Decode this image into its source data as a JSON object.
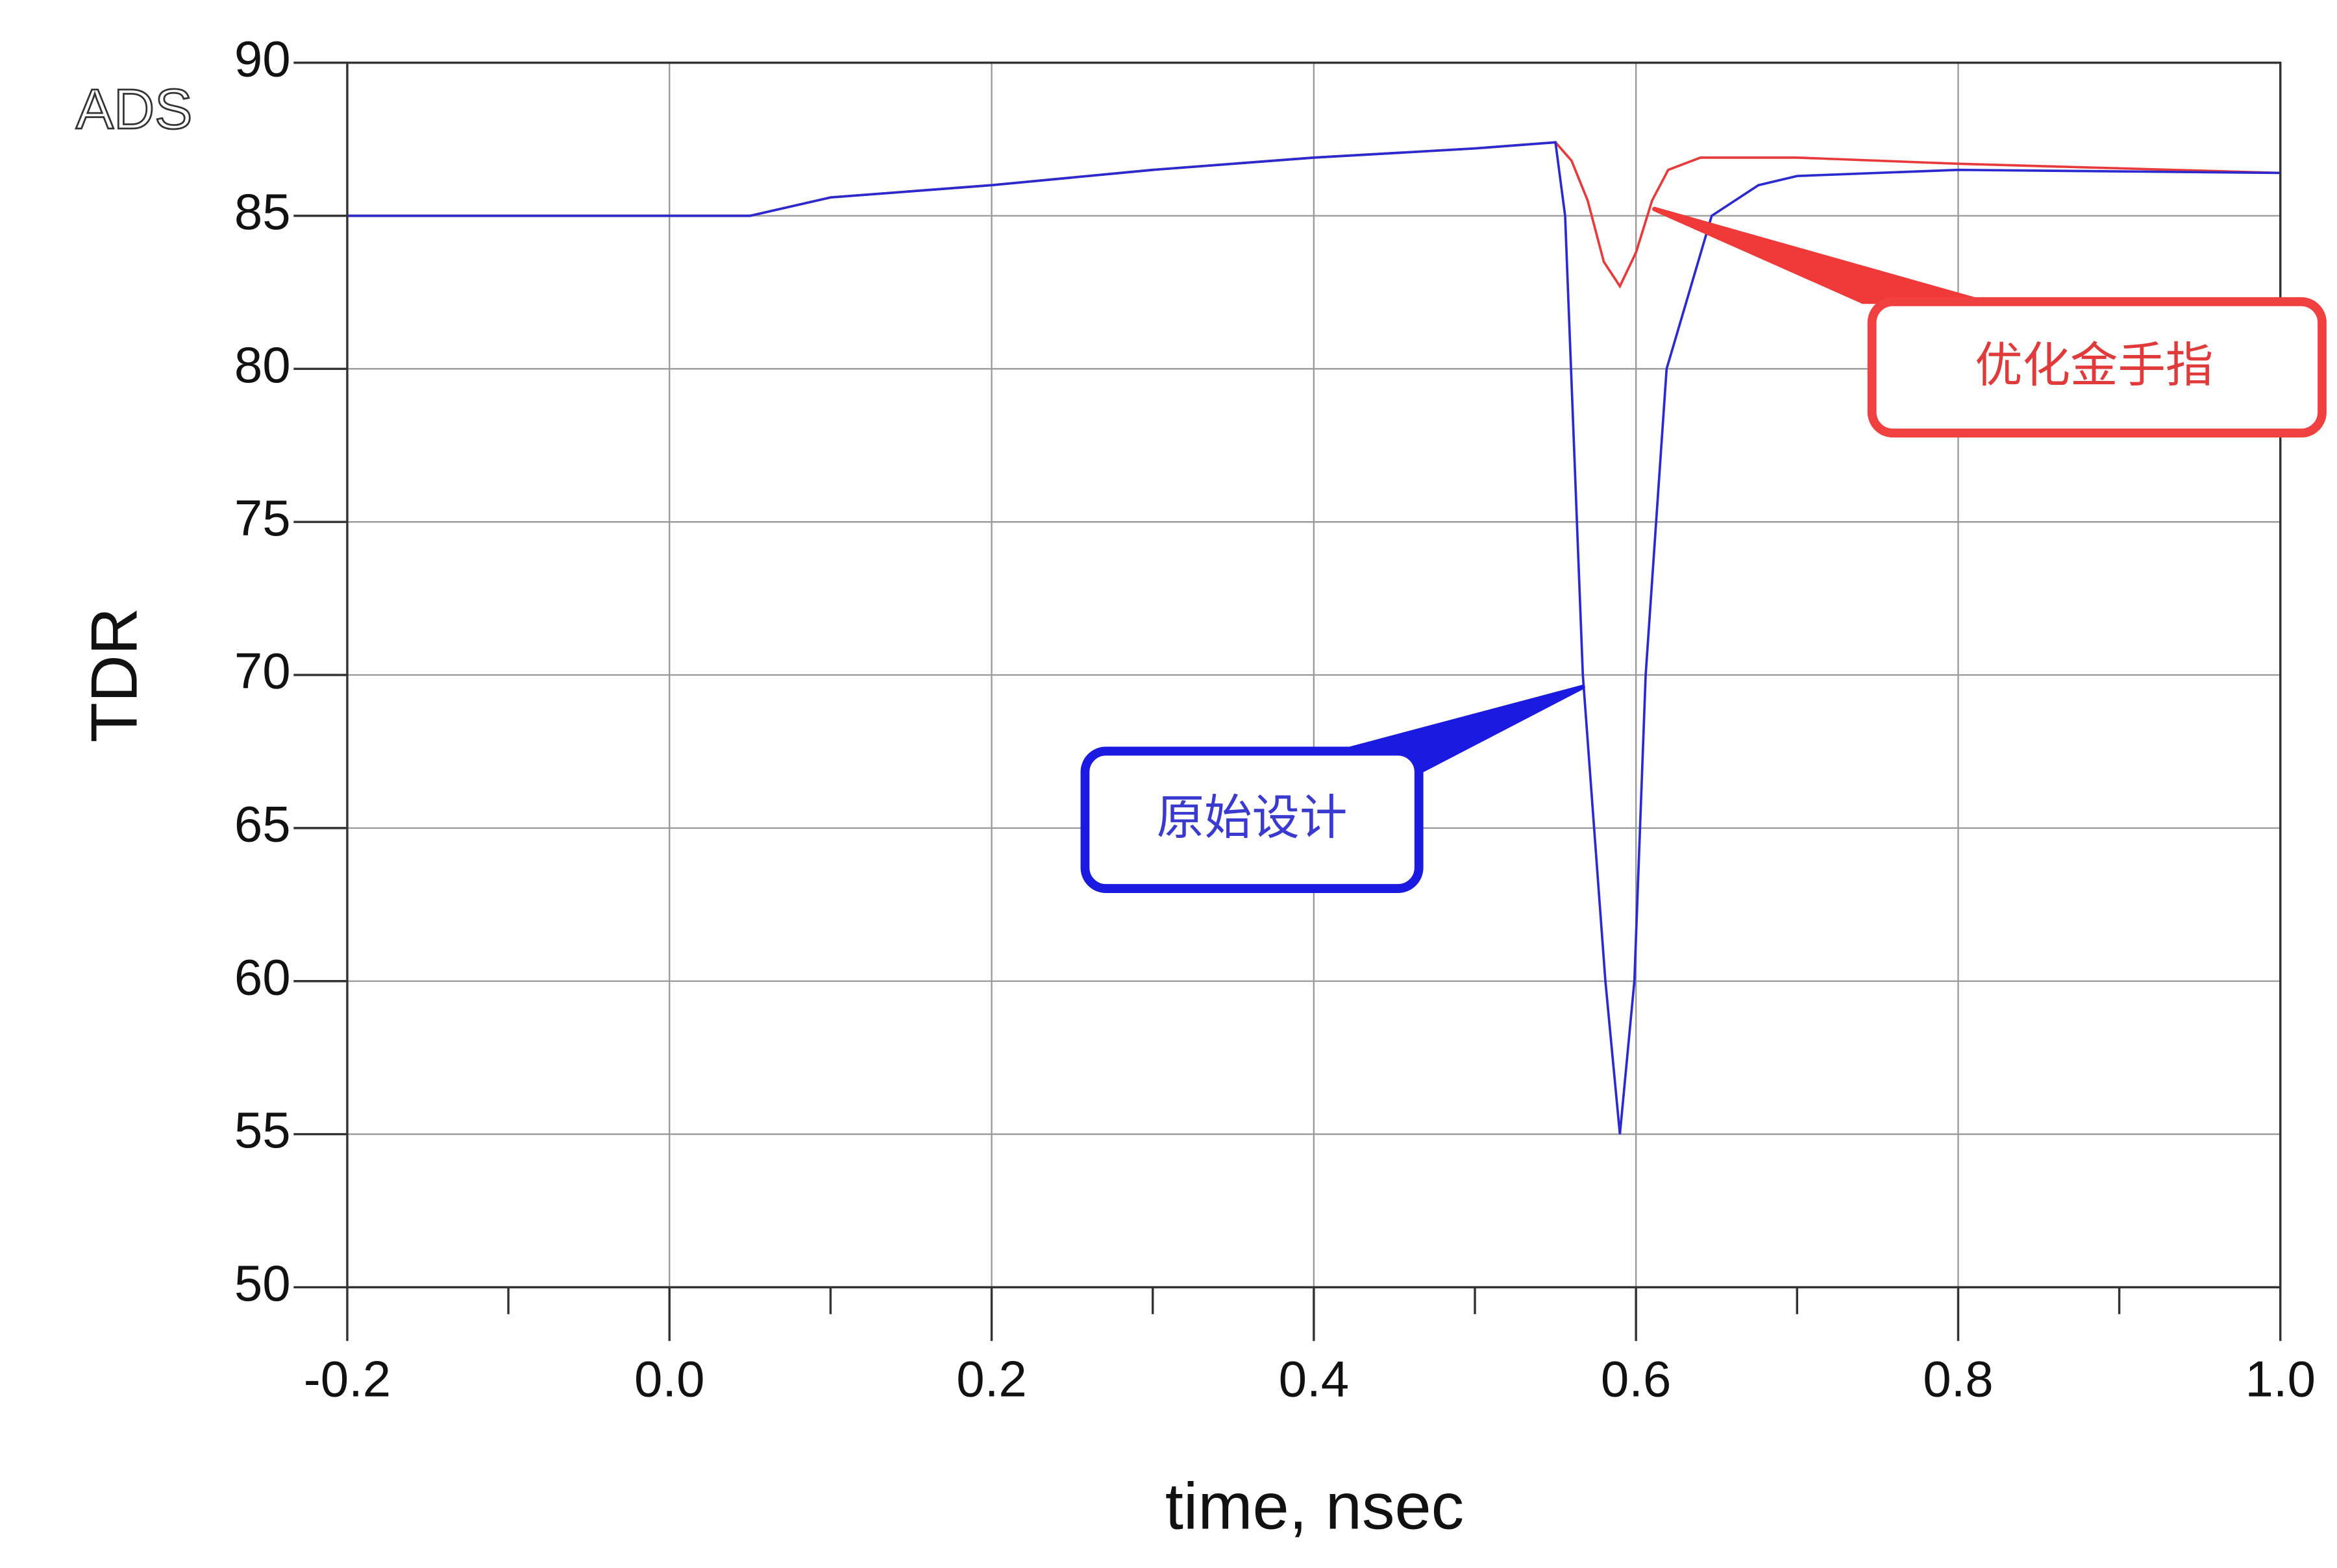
{
  "chart_data": {
    "type": "line",
    "corner_label": "ADS",
    "x_label": "time, nsec",
    "y_label": "TDR",
    "xlim": [
      -0.2,
      1.0
    ],
    "ylim": [
      50,
      90
    ],
    "xticks": [
      -0.2,
      {
        "value": 0,
        "label": "0.0"
      },
      0.2,
      0.4,
      0.6,
      0.8,
      {
        "value": 1,
        "label": "1.0"
      }
    ],
    "xminor": [
      -0.1,
      0.1,
      0.3,
      0.5,
      0.7,
      0.9
    ],
    "yticks": [
      50,
      55,
      60,
      65,
      70,
      75,
      80,
      85,
      90
    ],
    "grid": true,
    "series": [
      {
        "name": "原始设计",
        "color": "#2a2ad0",
        "x": [
          -0.2,
          0.05,
          0.1,
          0.2,
          0.3,
          0.4,
          0.5,
          0.55,
          0.556,
          0.567,
          0.581,
          0.59,
          0.599,
          0.606,
          0.619,
          0.647,
          0.676,
          0.7,
          0.8,
          1.0
        ],
        "values": [
          85,
          85,
          85.6,
          86,
          86.5,
          86.9,
          87.2,
          87.4,
          85,
          70,
          60,
          55,
          60,
          70,
          80,
          85,
          86,
          86.3,
          86.5,
          86.4
        ]
      },
      {
        "name": "优化金手指",
        "color": "#e83a3a",
        "x": [
          -0.2,
          0.05,
          0.1,
          0.2,
          0.3,
          0.4,
          0.5,
          0.55,
          0.56,
          0.57,
          0.58,
          0.59,
          0.6,
          0.61,
          0.62,
          0.64,
          0.7,
          0.8,
          1.0
        ],
        "values": [
          85,
          85,
          85.6,
          86,
          86.5,
          86.9,
          87.2,
          87.4,
          86.8,
          85.5,
          83.5,
          82.7,
          83.8,
          85.5,
          86.5,
          86.9,
          86.9,
          86.7,
          86.4
        ]
      }
    ]
  }
}
